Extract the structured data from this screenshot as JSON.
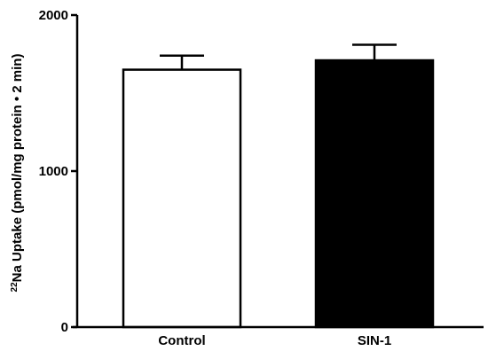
{
  "chart_data": {
    "type": "bar",
    "categories": [
      "Control",
      "SIN-1"
    ],
    "values": [
      1650,
      1710
    ],
    "errors": [
      90,
      100
    ],
    "bar_fills": [
      "#ffffff",
      "#000000"
    ],
    "bar_stroke": "#000000",
    "ylabel": {
      "superscript": "22",
      "text": "Na Uptake (pmol/mg protein • 2 min)"
    },
    "xlabel": "",
    "ylim": [
      0,
      2000
    ],
    "yticks": [
      0,
      1000,
      2000
    ],
    "grid": false
  }
}
